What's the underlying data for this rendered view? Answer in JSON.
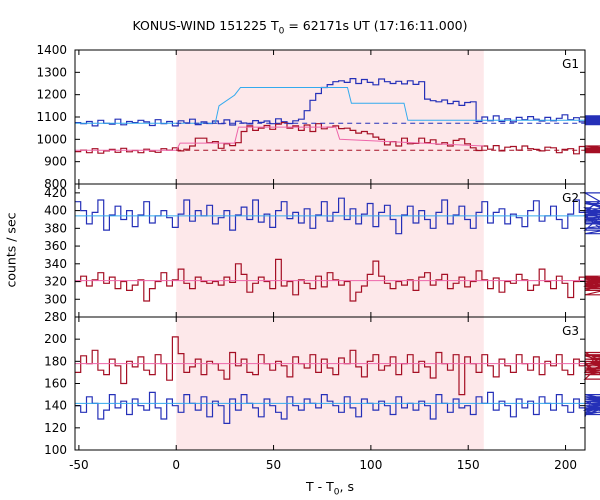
{
  "chart_data": {
    "type": "line",
    "title": {
      "main": "KONUS-WIND 151225 T",
      "subscript": "0",
      "rest": " = 62171s UT (17:16:11.000)"
    },
    "xlabel": {
      "main": "T - T",
      "subscript": "0",
      "rest": ", s"
    },
    "ylabel": "counts / sec",
    "xlim": [
      -52,
      210
    ],
    "xticks": [
      -50,
      0,
      50,
      100,
      150,
      200
    ],
    "bin_width": 2.944,
    "shaded_interval": [
      0,
      158
    ],
    "colors": {
      "shade": "#fde8ea",
      "series_blue": "#2530b8",
      "series_red": "#a50f24",
      "fit_blue": "#33aaee",
      "fit_red": "#ee66aa"
    },
    "panels": [
      {
        "name": "G1",
        "ylim": [
          800,
          1400
        ],
        "yticks": [
          800,
          900,
          1000,
          1100,
          1200,
          1300,
          1400
        ],
        "series": [
          {
            "color_key": "series_blue",
            "values": [
              1075,
              1070,
              1080,
              1060,
              1085,
              1072,
              1068,
              1090,
              1065,
              1080,
              1075,
              1085,
              1078,
              1062,
              1088,
              1070,
              1080,
              1060,
              1083,
              1074,
              1090,
              1066,
              1078,
              1071,
              1082,
              1070,
              1087,
              1064,
              1081,
              1073,
              1069,
              1084,
              1076,
              1082,
              1070,
              1092,
              1079,
              1071,
              1083,
              1090,
              1128,
              1175,
              1205,
              1232,
              1245,
              1258,
              1262,
              1255,
              1272,
              1250,
              1268,
              1255,
              1244,
              1270,
              1258,
              1250,
              1260,
              1248,
              1262,
              1246,
              1258,
              1180,
              1173,
              1168,
              1176,
              1160,
              1170,
              1152,
              1165,
              1168,
              1080,
              1100,
              1083,
              1105,
              1080,
              1092,
              1078,
              1098,
              1088,
              1102,
              1090,
              1082,
              1098,
              1083,
              1094,
              1110,
              1088,
              1097,
              1078,
              1090,
              1105,
              1086,
              1080,
              1092,
              1100,
              1072,
              1096,
              1070,
              1088,
              1105,
              1082,
              1092,
              1075,
              1095,
              1081,
              1066,
              1090,
              1072,
              1080,
              1097,
              1071,
              1089
            ]
          },
          {
            "color_key": "series_red",
            "values": [
              945,
              952,
              940,
              958,
              938,
              948,
              955,
              942,
              960,
              944,
              950,
              940,
              956,
              947,
              942,
              958,
              952,
              962,
              948,
              956,
              970,
              1005,
              1005,
              985,
              990,
              960,
              980,
              972,
              985,
              1035,
              1060,
              1040,
              1050,
              1062,
              1045,
              1068,
              1075,
              1050,
              1060,
              1040,
              1064,
              1035,
              1070,
              1047,
              1055,
              1060,
              1048,
              1050,
              1040,
              1028,
              1035,
              1025,
              1010,
              1000,
              975,
              990,
              970,
              1005,
              980,
              982,
              1005,
              985,
              998,
              978,
              985,
              970,
              995,
              1002,
              980,
              962,
              950,
              970,
              956,
              972,
              948,
              965,
              968,
              952,
              970,
              958,
              955,
              948,
              965,
              962,
              940,
              955,
              958,
              935,
              968,
              952,
              945,
              960,
              948,
              958,
              944,
              962,
              950,
              955,
              970,
              944,
              955,
              940,
              962,
              949,
              956,
              945,
              958,
              950,
              962,
              944,
              955,
              960
            ]
          }
        ],
        "fits": [
          {
            "color_key": "fit_blue",
            "style": "solid",
            "points": [
              [
                -52,
                1072
              ],
              [
                20,
                1072
              ],
              [
                22,
                1150
              ],
              [
                30,
                1198
              ],
              [
                33,
                1232
              ],
              [
                88,
                1232
              ],
              [
                90,
                1162
              ],
              [
                117,
                1162
              ],
              [
                119,
                1085
              ],
              [
                210,
                1085
              ]
            ]
          },
          {
            "color_key": "fit_red",
            "style": "solid",
            "points": [
              [
                -52,
                951
              ],
              [
                0,
                951
              ],
              [
                2,
                983
              ],
              [
                30,
                983
              ],
              [
                32,
                1055
              ],
              [
                82,
                1055
              ],
              [
                84,
                1000
              ],
              [
                158,
                970
              ]
            ]
          },
          {
            "color_key": "series_blue",
            "style": "dashed",
            "points": [
              [
                0,
                1072
              ],
              [
                210,
                1072
              ]
            ]
          },
          {
            "color_key": "series_red",
            "style": "dashed",
            "points": [
              [
                0,
                951
              ],
              [
                210,
                951
              ]
            ]
          }
        ]
      },
      {
        "name": "G2",
        "ylim": [
          280,
          430
        ],
        "yticks": [
          280,
          300,
          320,
          340,
          360,
          380,
          400,
          420
        ],
        "series": [
          {
            "color_key": "series_blue",
            "values": [
              410,
              400,
              385,
              398,
              412,
              378,
              395,
              405,
              390,
              400,
              382,
              395,
              410,
              386,
              394,
              400,
              392,
              381,
              396,
              412,
              388,
              400,
              394,
              406,
              385,
              392,
              400,
              378,
              395,
              404,
              390,
              412,
              387,
              396,
              381,
              400,
              410,
              391,
              398,
              386,
              402,
              380,
              395,
              410,
              388,
              398,
              414,
              390,
              402,
              385,
              396,
              408,
              382,
              398,
              406,
              390,
              374,
              395,
              405,
              386,
              400,
              390,
              380,
              398,
              412,
              385,
              395,
              405,
              390,
              380,
              398,
              410,
              386,
              398,
              402,
              385,
              396,
              392,
              382,
              400,
              411,
              388,
              394,
              405,
              390,
              380,
              396,
              412,
              398,
              386,
              403,
              394,
              378,
              400,
              420,
              398,
              410,
              390,
              402,
              385,
              395,
              410,
              388,
              400,
              392,
              380,
              396,
              408,
              386,
              374,
              398,
              410
            ]
          },
          {
            "color_key": "series_red",
            "values": [
              320,
              326,
              315,
              322,
              330,
              318,
              325,
              312,
              320,
              310,
              316,
              322,
              298,
              312,
              320,
              330,
              315,
              322,
              334,
              318,
              312,
              325,
              320,
              318,
              320,
              316,
              325,
              319,
              340,
              328,
              308,
              318,
              325,
              320,
              312,
              345,
              315,
              320,
              305,
              322,
              318,
              312,
              326,
              314,
              330,
              322,
              316,
              320,
              298,
              308,
              315,
              328,
              343,
              326,
              318,
              312,
              320,
              316,
              322,
              310,
              325,
              330,
              316,
              322,
              328,
              312,
              318,
              325,
              314,
              320,
              332,
              322,
              312,
              324,
              308,
              320,
              318,
              328,
              322,
              310,
              316,
              334,
              320,
              312,
              326,
              318,
              302,
              320,
              325,
              318,
              315,
              325,
              320,
              314,
              310,
              322,
              316,
              324,
              305,
              320,
              314,
              326,
              318,
              322,
              320,
              316,
              312,
              324,
              318,
              322,
              314,
              320
            ]
          }
        ],
        "fits": [
          {
            "color_key": "fit_blue",
            "style": "solid",
            "points": [
              [
                -52,
                394
              ],
              [
                210,
                394
              ]
            ]
          },
          {
            "color_key": "fit_red",
            "style": "solid",
            "points": [
              [
                -52,
                321
              ],
              [
                210,
                321
              ]
            ]
          }
        ]
      },
      {
        "name": "G3",
        "ylim": [
          100,
          220
        ],
        "yticks": [
          100,
          120,
          140,
          160,
          180,
          200
        ],
        "series": [
          {
            "color_key": "series_red",
            "values": [
              170,
              185,
              178,
              190,
              172,
              168,
              182,
              176,
              160,
              180,
              175,
              184,
              172,
              168,
              186,
              178,
              163,
              202,
              187,
              170,
              175,
              182,
              168,
              180,
              178,
              172,
              164,
              188,
              176,
              182,
              170,
              168,
              186,
              178,
              172,
              180,
              176,
              166,
              184,
              178,
              174,
              186,
              170,
              182,
              174,
              168,
              183,
              178,
              190,
              175,
              166,
              180,
              186,
              172,
              176,
              184,
              168,
              178,
              186,
              170,
              180,
              175,
              165,
              188,
              178,
              172,
              186,
              150,
              184,
              178,
              170,
              186,
              176,
              166,
              182,
              176,
              170,
              186,
              178,
              172,
              184,
              168,
              180,
              176,
              186,
              172,
              168,
              182,
              176,
              180,
              170,
              186,
              178,
              164,
              188,
              172,
              180,
              176,
              185,
              170,
              178,
              172,
              182,
              186,
              174,
              170,
              180,
              178,
              172,
              168,
              182,
              178
            ]
          },
          {
            "color_key": "series_blue",
            "values": [
              140,
              134,
              148,
              142,
              128,
              136,
              150,
              138,
              144,
              132,
              146,
              140,
              136,
              152,
              138,
              128,
              146,
              140,
              134,
              150,
              142,
              136,
              148,
              130,
              144,
              140,
              124,
              146,
              136,
              150,
              142,
              138,
              130,
              146,
              140,
              134,
              128,
              148,
              140,
              136,
              146,
              142,
              138,
              150,
              144,
              140,
              134,
              148,
              138,
              130,
              146,
              142,
              136,
              144,
              140,
              132,
              148,
              138,
              142,
              136,
              144,
              140,
              128,
              150,
              142,
              134,
              146,
              138,
              140,
              132,
              148,
              142,
              152,
              136,
              144,
              140,
              130,
              146,
              138,
              144,
              132,
              148,
              142,
              136,
              150,
              140,
              134,
              146,
              138,
              130,
              144,
              140,
              136,
              148,
              142,
              138,
              132,
              146,
              140,
              134,
              150,
              138,
              142,
              136,
              146,
              140,
              132,
              148,
              138,
              144,
              136,
              142
            ]
          }
        ],
        "fits": [
          {
            "color_key": "fit_red",
            "style": "solid",
            "points": [
              [
                -52,
                178
              ],
              [
                210,
                178
              ]
            ]
          },
          {
            "color_key": "fit_blue",
            "style": "solid",
            "points": [
              [
                -52,
                142
              ],
              [
                210,
                142
              ]
            ]
          }
        ]
      }
    ]
  }
}
